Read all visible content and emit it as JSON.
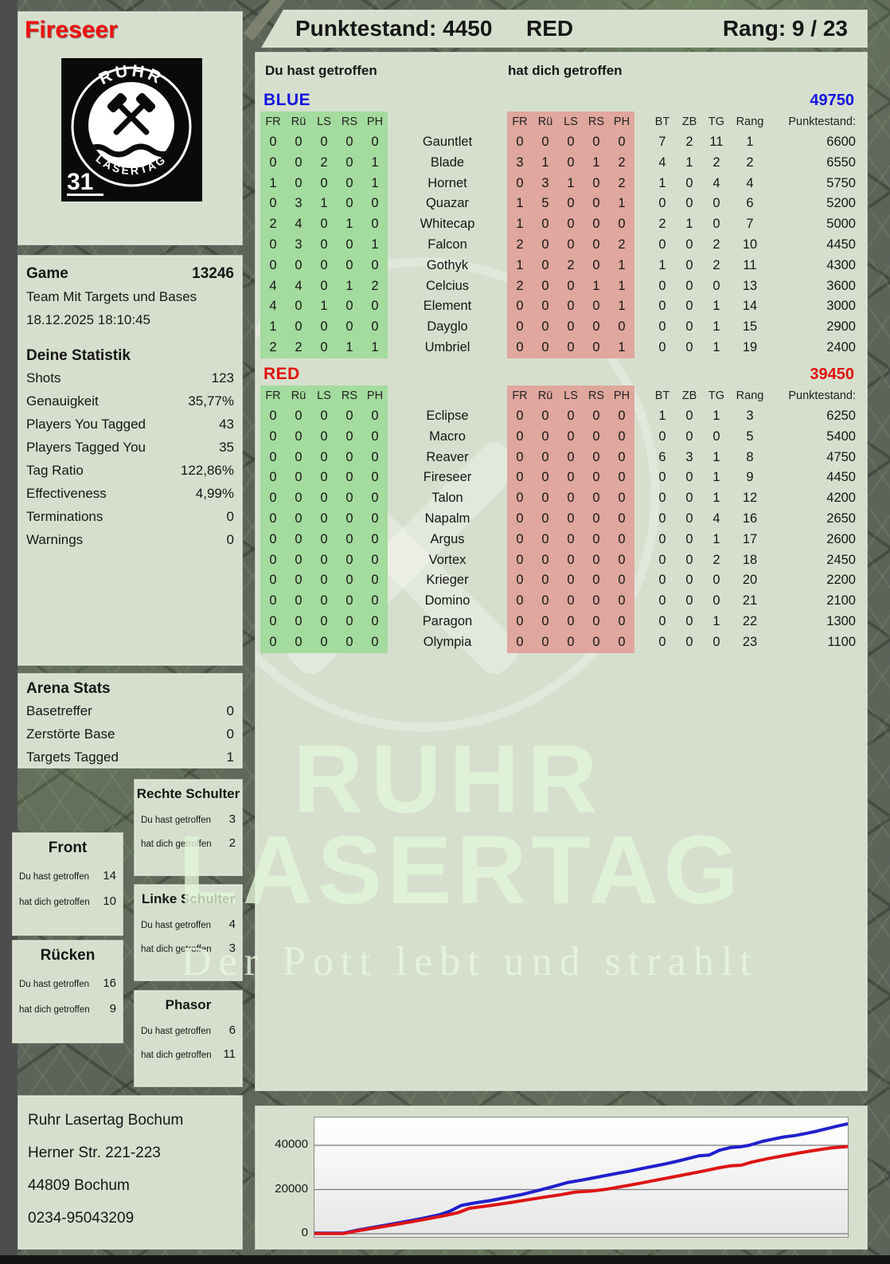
{
  "header": {
    "player": "Fireseer",
    "score_text": "Punktestand: 4450",
    "team": "RED",
    "rank_text": "Rang: 9 / 23"
  },
  "logo": {
    "arc_top": "RUHR",
    "arc_bottom": "LASERTAG",
    "badge": "31"
  },
  "game": {
    "title": "Game",
    "id": "13246",
    "mode": "Team Mit Targets und Bases",
    "datetime": "18.12.2025 18:10:45"
  },
  "your_stats": {
    "title": "Deine Statistik",
    "rows": [
      [
        "Shots",
        "123"
      ],
      [
        "Genauigkeit",
        "35,77%"
      ],
      [
        "Players You Tagged",
        "43"
      ],
      [
        "Players Tagged You",
        "35"
      ],
      [
        "Tag Ratio",
        "122,86%"
      ],
      [
        "Effectiveness",
        "4,99%"
      ],
      [
        "Terminations",
        "0"
      ],
      [
        "Warnings",
        "0"
      ]
    ]
  },
  "arena_stats": {
    "title": "Arena Stats",
    "rows": [
      [
        "Basetreffer",
        "0"
      ],
      [
        "Zerstörte Base",
        "0"
      ],
      [
        "Targets Tagged",
        "1"
      ]
    ]
  },
  "hit_zone_labels": {
    "you": "Du hast getroffen",
    "me": "hat dich getroffen"
  },
  "hit_zones": {
    "front": {
      "title": "Front",
      "you": "14",
      "me": "10"
    },
    "ruecken": {
      "title": "Rücken",
      "you": "16",
      "me": "9"
    },
    "rechte": {
      "title": "Rechte Schulter",
      "you": "3",
      "me": "2"
    },
    "linke": {
      "title": "Linke Schulter",
      "you": "4",
      "me": "3"
    },
    "phasor": {
      "title": "Phasor",
      "you": "6",
      "me": "11"
    }
  },
  "address": {
    "lines": [
      "Ruhr Lasertag Bochum",
      "Herner Str. 221-223",
      "44809 Bochum",
      "0234-95043209"
    ]
  },
  "watermark": {
    "line1": "RUHR",
    "line2": "LASERTAG",
    "tagline": "Der Pott lebt und strahlt"
  },
  "scoreboard": {
    "you_hit_label": "Du hast getroffen",
    "hit_you_label": "hat dich getroffen",
    "hit_columns": [
      "FR",
      "Rü",
      "LS",
      "RS",
      "PH"
    ],
    "stat_columns": [
      "BT",
      "ZB",
      "TG",
      "Rang",
      "Punktestand:"
    ],
    "colors": {
      "green_block": "#a4db9e",
      "red_block": "#dfa79d",
      "blue_team": "#1313e0",
      "red_team": "#e01111"
    },
    "teams": [
      {
        "name": "BLUE",
        "score": "49750",
        "color": "#1313e0",
        "players": [
          {
            "name": "Gauntlet",
            "you_hit": [
              0,
              0,
              0,
              0,
              0
            ],
            "hit_you": [
              0,
              0,
              0,
              0,
              0
            ],
            "stats": [
              7,
              2,
              11,
              1,
              6600
            ]
          },
          {
            "name": "Blade",
            "you_hit": [
              0,
              0,
              2,
              0,
              1
            ],
            "hit_you": [
              3,
              1,
              0,
              1,
              2
            ],
            "stats": [
              4,
              1,
              2,
              2,
              6550
            ]
          },
          {
            "name": "Hornet",
            "you_hit": [
              1,
              0,
              0,
              0,
              1
            ],
            "hit_you": [
              0,
              3,
              1,
              0,
              2
            ],
            "stats": [
              1,
              0,
              4,
              4,
              5750
            ]
          },
          {
            "name": "Quazar",
            "you_hit": [
              0,
              3,
              1,
              0,
              0
            ],
            "hit_you": [
              1,
              5,
              0,
              0,
              1
            ],
            "stats": [
              0,
              0,
              0,
              6,
              5200
            ]
          },
          {
            "name": "Whitecap",
            "you_hit": [
              2,
              4,
              0,
              1,
              0
            ],
            "hit_you": [
              1,
              0,
              0,
              0,
              0
            ],
            "stats": [
              2,
              1,
              0,
              7,
              5000
            ]
          },
          {
            "name": "Falcon",
            "you_hit": [
              0,
              3,
              0,
              0,
              1
            ],
            "hit_you": [
              2,
              0,
              0,
              0,
              2
            ],
            "stats": [
              0,
              0,
              2,
              10,
              4450
            ]
          },
          {
            "name": "Gothyk",
            "you_hit": [
              0,
              0,
              0,
              0,
              0
            ],
            "hit_you": [
              1,
              0,
              2,
              0,
              1
            ],
            "stats": [
              1,
              0,
              2,
              11,
              4300
            ]
          },
          {
            "name": "Celcius",
            "you_hit": [
              4,
              4,
              0,
              1,
              2
            ],
            "hit_you": [
              2,
              0,
              0,
              1,
              1
            ],
            "stats": [
              0,
              0,
              0,
              13,
              3600
            ]
          },
          {
            "name": "Element",
            "you_hit": [
              4,
              0,
              1,
              0,
              0
            ],
            "hit_you": [
              0,
              0,
              0,
              0,
              1
            ],
            "stats": [
              0,
              0,
              1,
              14,
              3000
            ]
          },
          {
            "name": "Dayglo",
            "you_hit": [
              1,
              0,
              0,
              0,
              0
            ],
            "hit_you": [
              0,
              0,
              0,
              0,
              0
            ],
            "stats": [
              0,
              0,
              1,
              15,
              2900
            ]
          },
          {
            "name": "Umbriel",
            "you_hit": [
              2,
              2,
              0,
              1,
              1
            ],
            "hit_you": [
              0,
              0,
              0,
              0,
              1
            ],
            "stats": [
              0,
              0,
              1,
              19,
              2400
            ]
          }
        ]
      },
      {
        "name": "RED",
        "score": "39450",
        "color": "#e01111",
        "players": [
          {
            "name": "Eclipse",
            "you_hit": [
              0,
              0,
              0,
              0,
              0
            ],
            "hit_you": [
              0,
              0,
              0,
              0,
              0
            ],
            "stats": [
              1,
              0,
              1,
              3,
              6250
            ]
          },
          {
            "name": "Macro",
            "you_hit": [
              0,
              0,
              0,
              0,
              0
            ],
            "hit_you": [
              0,
              0,
              0,
              0,
              0
            ],
            "stats": [
              0,
              0,
              0,
              5,
              5400
            ]
          },
          {
            "name": "Reaver",
            "you_hit": [
              0,
              0,
              0,
              0,
              0
            ],
            "hit_you": [
              0,
              0,
              0,
              0,
              0
            ],
            "stats": [
              6,
              3,
              1,
              8,
              4750
            ]
          },
          {
            "name": "Fireseer",
            "you_hit": [
              0,
              0,
              0,
              0,
              0
            ],
            "hit_you": [
              0,
              0,
              0,
              0,
              0
            ],
            "stats": [
              0,
              0,
              1,
              9,
              4450
            ]
          },
          {
            "name": "Talon",
            "you_hit": [
              0,
              0,
              0,
              0,
              0
            ],
            "hit_you": [
              0,
              0,
              0,
              0,
              0
            ],
            "stats": [
              0,
              0,
              1,
              12,
              4200
            ]
          },
          {
            "name": "Napalm",
            "you_hit": [
              0,
              0,
              0,
              0,
              0
            ],
            "hit_you": [
              0,
              0,
              0,
              0,
              0
            ],
            "stats": [
              0,
              0,
              4,
              16,
              2650
            ]
          },
          {
            "name": "Argus",
            "you_hit": [
              0,
              0,
              0,
              0,
              0
            ],
            "hit_you": [
              0,
              0,
              0,
              0,
              0
            ],
            "stats": [
              0,
              0,
              1,
              17,
              2600
            ]
          },
          {
            "name": "Vortex",
            "you_hit": [
              0,
              0,
              0,
              0,
              0
            ],
            "hit_you": [
              0,
              0,
              0,
              0,
              0
            ],
            "stats": [
              0,
              0,
              2,
              18,
              2450
            ]
          },
          {
            "name": "Krieger",
            "you_hit": [
              0,
              0,
              0,
              0,
              0
            ],
            "hit_you": [
              0,
              0,
              0,
              0,
              0
            ],
            "stats": [
              0,
              0,
              0,
              20,
              2200
            ]
          },
          {
            "name": "Domino",
            "you_hit": [
              0,
              0,
              0,
              0,
              0
            ],
            "hit_you": [
              0,
              0,
              0,
              0,
              0
            ],
            "stats": [
              0,
              0,
              0,
              21,
              2100
            ]
          },
          {
            "name": "Paragon",
            "you_hit": [
              0,
              0,
              0,
              0,
              0
            ],
            "hit_you": [
              0,
              0,
              0,
              0,
              0
            ],
            "stats": [
              0,
              0,
              1,
              22,
              1300
            ]
          },
          {
            "name": "Olympia",
            "you_hit": [
              0,
              0,
              0,
              0,
              0
            ],
            "hit_you": [
              0,
              0,
              0,
              0,
              0
            ],
            "stats": [
              0,
              0,
              0,
              23,
              1100
            ]
          }
        ]
      }
    ]
  },
  "chart_data": {
    "type": "line",
    "title": "",
    "xlabel": "",
    "ylabel": "",
    "ylim": [
      0,
      52500
    ],
    "yticks": [
      0,
      20000,
      40000
    ],
    "ytick_labels": [
      "0",
      "20000",
      "40000"
    ],
    "grid": true,
    "legend_position": "none",
    "series": [
      {
        "name": "BLUE",
        "color": "#2020cc",
        "final_value": 49750,
        "points": [
          [
            0,
            300
          ],
          [
            0.055,
            300
          ],
          [
            0.08,
            1600
          ],
          [
            0.12,
            3300
          ],
          [
            0.16,
            5000
          ],
          [
            0.2,
            6800
          ],
          [
            0.235,
            8600
          ],
          [
            0.255,
            10300
          ],
          [
            0.275,
            12800
          ],
          [
            0.3,
            13900
          ],
          [
            0.33,
            15000
          ],
          [
            0.36,
            16400
          ],
          [
            0.39,
            17800
          ],
          [
            0.42,
            19600
          ],
          [
            0.45,
            21500
          ],
          [
            0.475,
            23200
          ],
          [
            0.5,
            24200
          ],
          [
            0.53,
            25600
          ],
          [
            0.56,
            27000
          ],
          [
            0.59,
            28300
          ],
          [
            0.62,
            29800
          ],
          [
            0.65,
            31200
          ],
          [
            0.68,
            32800
          ],
          [
            0.7,
            34000
          ],
          [
            0.72,
            35200
          ],
          [
            0.74,
            35600
          ],
          [
            0.76,
            37800
          ],
          [
            0.78,
            39000
          ],
          [
            0.8,
            39400
          ],
          [
            0.815,
            40000
          ],
          [
            0.84,
            41800
          ],
          [
            0.86,
            42800
          ],
          [
            0.88,
            43800
          ],
          [
            0.9,
            44400
          ],
          [
            0.92,
            45300
          ],
          [
            0.94,
            46300
          ],
          [
            0.96,
            47500
          ],
          [
            0.98,
            48700
          ],
          [
            1,
            49750
          ]
        ]
      },
      {
        "name": "RED",
        "color": "#dd1515",
        "final_value": 39450,
        "points": [
          [
            0,
            100
          ],
          [
            0.055,
            100
          ],
          [
            0.08,
            1300
          ],
          [
            0.12,
            2900
          ],
          [
            0.16,
            4500
          ],
          [
            0.2,
            6200
          ],
          [
            0.24,
            8000
          ],
          [
            0.27,
            9600
          ],
          [
            0.29,
            11500
          ],
          [
            0.315,
            12300
          ],
          [
            0.34,
            13100
          ],
          [
            0.37,
            14200
          ],
          [
            0.4,
            15400
          ],
          [
            0.43,
            16500
          ],
          [
            0.46,
            17600
          ],
          [
            0.49,
            18900
          ],
          [
            0.52,
            19300
          ],
          [
            0.55,
            20200
          ],
          [
            0.58,
            21500
          ],
          [
            0.61,
            22800
          ],
          [
            0.64,
            24200
          ],
          [
            0.67,
            25600
          ],
          [
            0.7,
            27000
          ],
          [
            0.73,
            28400
          ],
          [
            0.76,
            29900
          ],
          [
            0.78,
            30700
          ],
          [
            0.8,
            31000
          ],
          [
            0.82,
            32400
          ],
          [
            0.85,
            34000
          ],
          [
            0.88,
            35300
          ],
          [
            0.91,
            36600
          ],
          [
            0.94,
            37800
          ],
          [
            0.97,
            38900
          ],
          [
            1,
            39450
          ]
        ]
      }
    ]
  }
}
